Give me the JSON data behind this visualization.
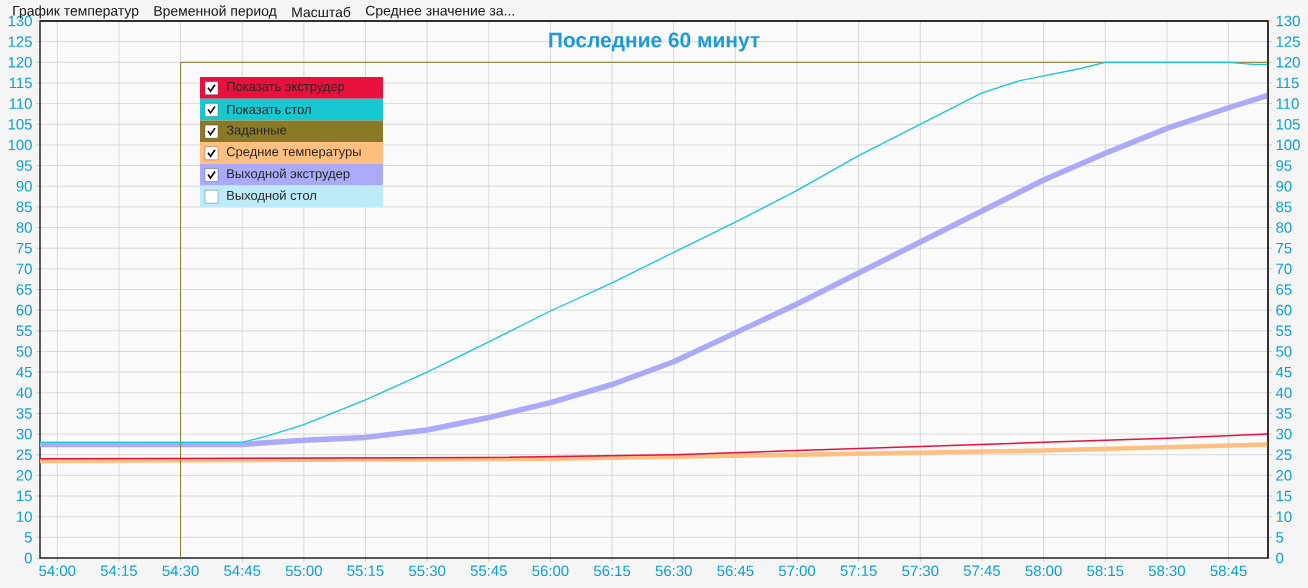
{
  "chart_data": {
    "type": "line",
    "title": "Последние 60 минут",
    "annotations": [
      "График температур",
      "Временной период",
      "Масштаб",
      "Среднее значение за...",
      "Выходной стол"
    ],
    "xlim": [
      53.93,
      58.91
    ],
    "xticks": [
      {
        "value": 54,
        "label": "54:00"
      },
      {
        "value": 54.25,
        "label": "54:15"
      },
      {
        "value": 54.5,
        "label": "54:30"
      },
      {
        "value": 54.75,
        "label": "54:45"
      },
      {
        "value": 55,
        "label": "55:00"
      },
      {
        "value": 55.25,
        "label": "55:15"
      },
      {
        "value": 55.5,
        "label": "55:30"
      },
      {
        "value": 55.75,
        "label": "55:45"
      },
      {
        "value": 56,
        "label": "56:00"
      },
      {
        "value": 56.25,
        "label": "56:15"
      },
      {
        "value": 56.5,
        "label": "56:30"
      },
      {
        "value": 56.75,
        "label": "56:45"
      },
      {
        "value": 57,
        "label": "57:00"
      },
      {
        "value": 57.25,
        "label": "57:15"
      },
      {
        "value": 57.5,
        "label": "57:30"
      },
      {
        "value": 57.75,
        "label": "57:45"
      },
      {
        "value": 58,
        "label": "58:00"
      },
      {
        "value": 58.25,
        "label": "58:15"
      },
      {
        "value": 58.5,
        "label": "58:30"
      },
      {
        "value": 58.75,
        "label": "58:45"
      }
    ],
    "ylim": [
      0,
      130
    ],
    "yticks": [
      0,
      5,
      10,
      15,
      20,
      25,
      30,
      35,
      40,
      45,
      50,
      55,
      60,
      65,
      70,
      75,
      80,
      85,
      90,
      95,
      100,
      105,
      110,
      115,
      120,
      125,
      130
    ],
    "y2lim": [
      0,
      130
    ],
    "y2ticks": [
      0,
      5,
      10,
      15,
      20,
      25,
      30,
      35,
      40,
      45,
      50,
      55,
      60,
      65,
      70,
      75,
      80,
      85,
      90,
      95,
      100,
      105,
      110,
      115,
      120,
      125,
      130
    ],
    "grid": true,
    "legend": "top left",
    "series": [
      {
        "name": "Показать экструдер",
        "color": "#e8103c",
        "x": [
          53.93,
          55.75,
          56.5,
          57.0,
          57.5,
          58.0,
          58.5,
          58.91
        ],
        "values": [
          24,
          24.3,
          25,
          26,
          27,
          28,
          29,
          30
        ]
      },
      {
        "name": "Показать стол",
        "color": "#18c8d0",
        "x": [
          53.93,
          54.5,
          54.75,
          54.85,
          55.0,
          55.25,
          55.5,
          55.75,
          56.0,
          56.25,
          56.5,
          56.75,
          57.0,
          57.25,
          57.5,
          57.75,
          57.9,
          58.0,
          58.15,
          58.25,
          58.5,
          58.75,
          58.85,
          58.91
        ],
        "values": [
          28,
          28,
          28,
          29.5,
          32.3,
          38.3,
          45,
          52.3,
          59.8,
          66.6,
          74,
          81.3,
          89,
          97.4,
          105,
          112.6,
          115.5,
          116.7,
          118.5,
          120,
          120,
          120,
          119.5,
          119.5
        ]
      },
      {
        "name": "Заданные",
        "color": "#8a7a28",
        "x": [
          54.5,
          54.5,
          58.91
        ],
        "values": [
          0,
          120,
          120
        ]
      },
      {
        "name": "Средние температуры",
        "color": "#ffbf80",
        "x": [
          53.93,
          56.0,
          57.0,
          58.0,
          58.91
        ],
        "values": [
          23.5,
          24,
          25,
          26,
          27.5
        ]
      },
      {
        "name": "Выходной экструдер",
        "color": "#aaaaf8",
        "x": [
          53.93,
          54.75,
          55.0,
          55.25,
          55.5,
          55.75,
          56.0,
          56.25,
          56.5,
          56.75,
          57.0,
          57.25,
          57.5,
          57.75,
          58.0,
          58.25,
          58.5,
          58.75,
          58.91
        ],
        "values": [
          27.5,
          27.5,
          28.5,
          29.2,
          31,
          34,
          37.6,
          42,
          47.5,
          54.5,
          61.5,
          69,
          76.5,
          84,
          91.5,
          98,
          104,
          109,
          112
        ]
      }
    ]
  }
}
